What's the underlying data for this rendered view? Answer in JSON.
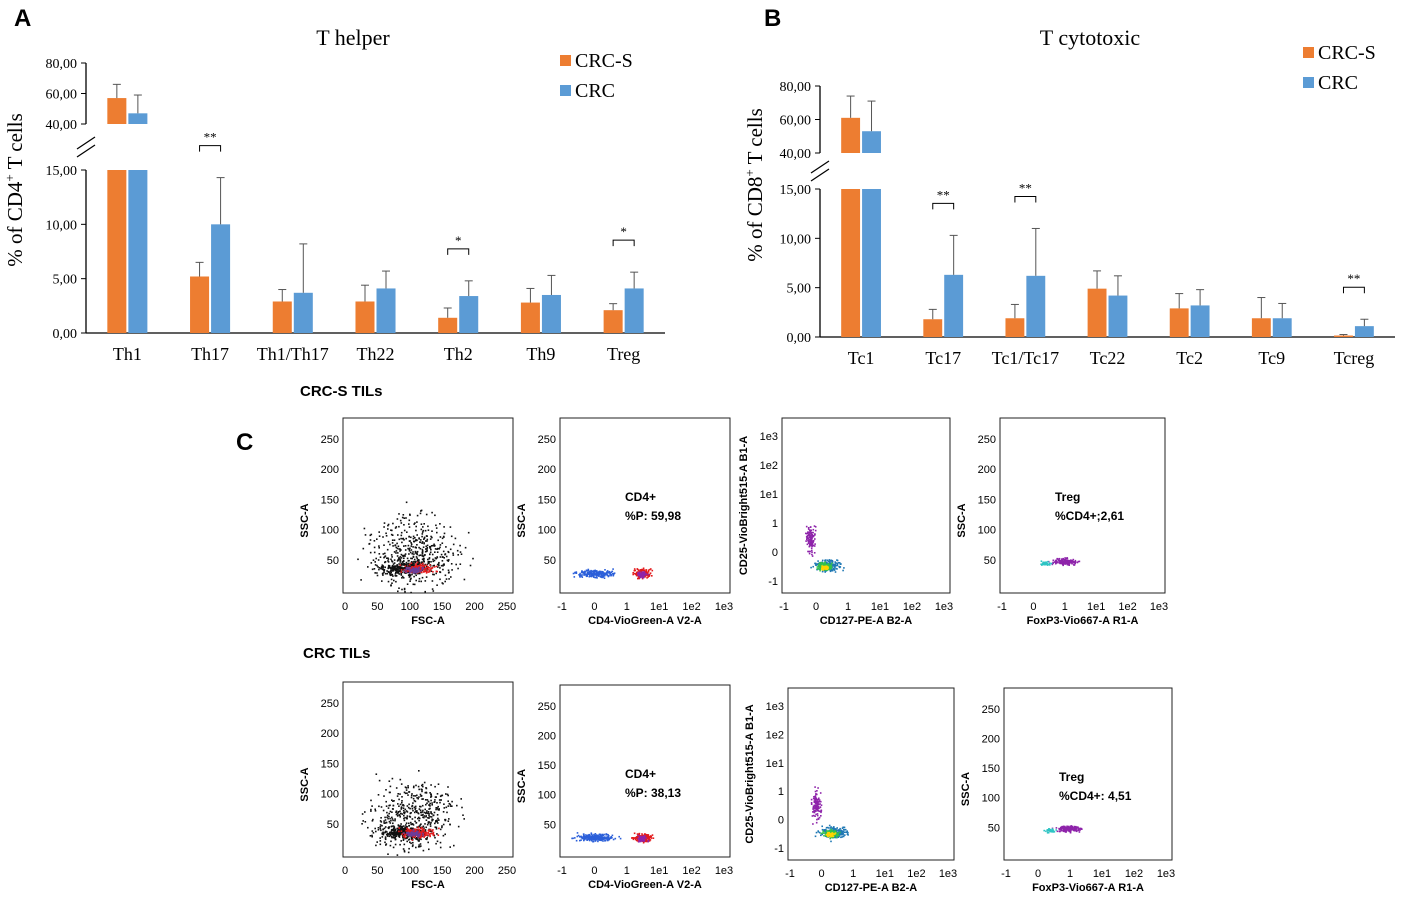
{
  "panel_labels": {
    "a": "A",
    "b": "B",
    "c": "C"
  },
  "colors": {
    "crc_s": "#ED7D31",
    "crc": "#5B9BD5",
    "axis": "#000000"
  },
  "chart_data": [
    {
      "id": "A",
      "type": "bar",
      "title": "T helper",
      "ylabel": "% of CD4⁺ T cells",
      "ylabel_main": "% of CD4",
      "ylabel_sup": "+",
      "ylabel_tail": " T cells",
      "categories": [
        "Th1",
        "Th17",
        "Th1/Th17",
        "Th22",
        "Th2",
        "Th9",
        "Treg"
      ],
      "series": [
        {
          "name": "CRC-S",
          "values": [
            57.0,
            5.2,
            2.9,
            2.9,
            1.4,
            2.8,
            2.1
          ],
          "errors": [
            9.0,
            1.3,
            1.1,
            1.5,
            0.9,
            1.3,
            0.6
          ]
        },
        {
          "name": "CRC",
          "values": [
            47.0,
            10.0,
            3.7,
            4.1,
            3.4,
            3.5,
            4.1
          ],
          "errors": [
            12.0,
            4.3,
            4.5,
            1.6,
            1.4,
            1.8,
            1.5
          ]
        }
      ],
      "axis_break": {
        "lower_range": [
          0,
          15
        ],
        "upper_range": [
          40,
          80
        ]
      },
      "lower_ticks": [
        "0,00",
        "5,00",
        "10,00",
        "15,00"
      ],
      "lower_tick_values": [
        0,
        5,
        10,
        15
      ],
      "upper_ticks": [
        "40,00",
        "60,00",
        "80,00"
      ],
      "upper_tick_values": [
        40,
        60,
        80
      ],
      "significance": [
        {
          "category": "Th17",
          "label": "**"
        },
        {
          "category": "Th2",
          "label": "*"
        },
        {
          "category": "Treg",
          "label": "*"
        }
      ],
      "legend_position": "top-right"
    },
    {
      "id": "B",
      "type": "bar",
      "title": "T cytotoxic",
      "ylabel": "% of CD8⁺ T cells",
      "ylabel_main": "% of CD8",
      "ylabel_sup": "+",
      "ylabel_tail": " T cells",
      "categories": [
        "Tc1",
        "Tc17",
        "Tc1/Tc17",
        "Tc22",
        "Tc2",
        "Tc9",
        "Tcreg"
      ],
      "series": [
        {
          "name": "CRC-S",
          "values": [
            61.0,
            1.8,
            1.9,
            4.9,
            2.9,
            1.9,
            0.15
          ],
          "errors": [
            13.0,
            1.0,
            1.4,
            1.8,
            1.5,
            2.1,
            0.1
          ]
        },
        {
          "name": "CRC",
          "values": [
            53.0,
            6.3,
            6.2,
            4.2,
            3.2,
            1.9,
            1.1
          ],
          "errors": [
            18.0,
            4.0,
            4.8,
            2.0,
            1.6,
            1.5,
            0.7
          ]
        }
      ],
      "axis_break": {
        "lower_range": [
          0,
          15
        ],
        "upper_range": [
          40,
          80
        ]
      },
      "lower_ticks": [
        "0,00",
        "5,00",
        "10,00",
        "15,00"
      ],
      "lower_tick_values": [
        0,
        5,
        10,
        15
      ],
      "upper_ticks": [
        "40,00",
        "60,00",
        "80,00"
      ],
      "upper_tick_values": [
        40,
        60,
        80
      ],
      "significance": [
        {
          "category": "Tc17",
          "label": "**"
        },
        {
          "category": "Tc1/Tc17",
          "label": "**"
        },
        {
          "category": "Tcreg",
          "label": "**"
        }
      ],
      "legend_position": "top-right"
    },
    {
      "id": "C",
      "type": "scatter",
      "description_rows": [
        {
          "label": "CRC-S TILs",
          "plots": [
            {
              "xlabel": "FSC-A",
              "ylabel": "SSC-A",
              "xticks": [
                "0",
                "50",
                "100",
                "150",
                "200",
                "250"
              ],
              "yticks": [
                "50",
                "100",
                "150",
                "200",
                "250"
              ]
            },
            {
              "xlabel": "CD4-VioGreen-A V2-A",
              "ylabel": "SSC-A",
              "xticks": [
                "-1",
                "0",
                "1",
                "1e1",
                "1e2",
                "1e3"
              ],
              "yticks": [
                "50",
                "100",
                "150",
                "200",
                "250"
              ],
              "gate_name": "CD4+",
              "gate_value": "%P: 59,98"
            },
            {
              "xlabel": "CD127-PE-A B2-A",
              "ylabel": "CD25-VioBright515-A B1-A",
              "xticks": [
                "-1",
                "0",
                "1",
                "1e1",
                "1e2",
                "1e3"
              ],
              "yticks": [
                "-1",
                "0",
                "1",
                "1e1",
                "1e2",
                "1e3"
              ]
            },
            {
              "xlabel": "FoxP3-Vio667-A R1-A",
              "ylabel": "SSC-A",
              "xticks": [
                "-1",
                "0",
                "1",
                "1e1",
                "1e2",
                "1e3"
              ],
              "yticks": [
                "50",
                "100",
                "150",
                "200",
                "250"
              ],
              "gate_name": "Treg",
              "gate_value": "%CD4+;2,61"
            }
          ]
        },
        {
          "label": "CRC TILs",
          "plots": [
            {
              "xlabel": "FSC-A",
              "ylabel": "SSC-A",
              "xticks": [
                "0",
                "50",
                "100",
                "150",
                "200",
                "250"
              ],
              "yticks": [
                "50",
                "100",
                "150",
                "200",
                "250"
              ]
            },
            {
              "xlabel": "CD4-VioGreen-A V2-A",
              "ylabel": "SSC-A",
              "xticks": [
                "-1",
                "0",
                "1",
                "1e1",
                "1e2",
                "1e3"
              ],
              "yticks": [
                "50",
                "100",
                "150",
                "200",
                "250"
              ],
              "gate_name": "CD4+",
              "gate_value": "%P: 38,13"
            },
            {
              "xlabel": "CD127-PE-A B2-A",
              "ylabel": "CD25-VioBright515-A B1-A",
              "xticks": [
                "-1",
                "0",
                "1",
                "1e1",
                "1e2",
                "1e3"
              ],
              "yticks": [
                "-1",
                "0",
                "1",
                "1e1",
                "1e2",
                "1e3"
              ]
            },
            {
              "xlabel": "FoxP3-Vio667-A R1-A",
              "ylabel": "SSC-A",
              "xticks": [
                "-1",
                "0",
                "1",
                "1e1",
                "1e2",
                "1e3"
              ],
              "yticks": [
                "50",
                "100",
                "150",
                "200",
                "250"
              ],
              "gate_name": "Treg",
              "gate_value": "%CD4+: 4,51"
            }
          ]
        }
      ]
    }
  ]
}
